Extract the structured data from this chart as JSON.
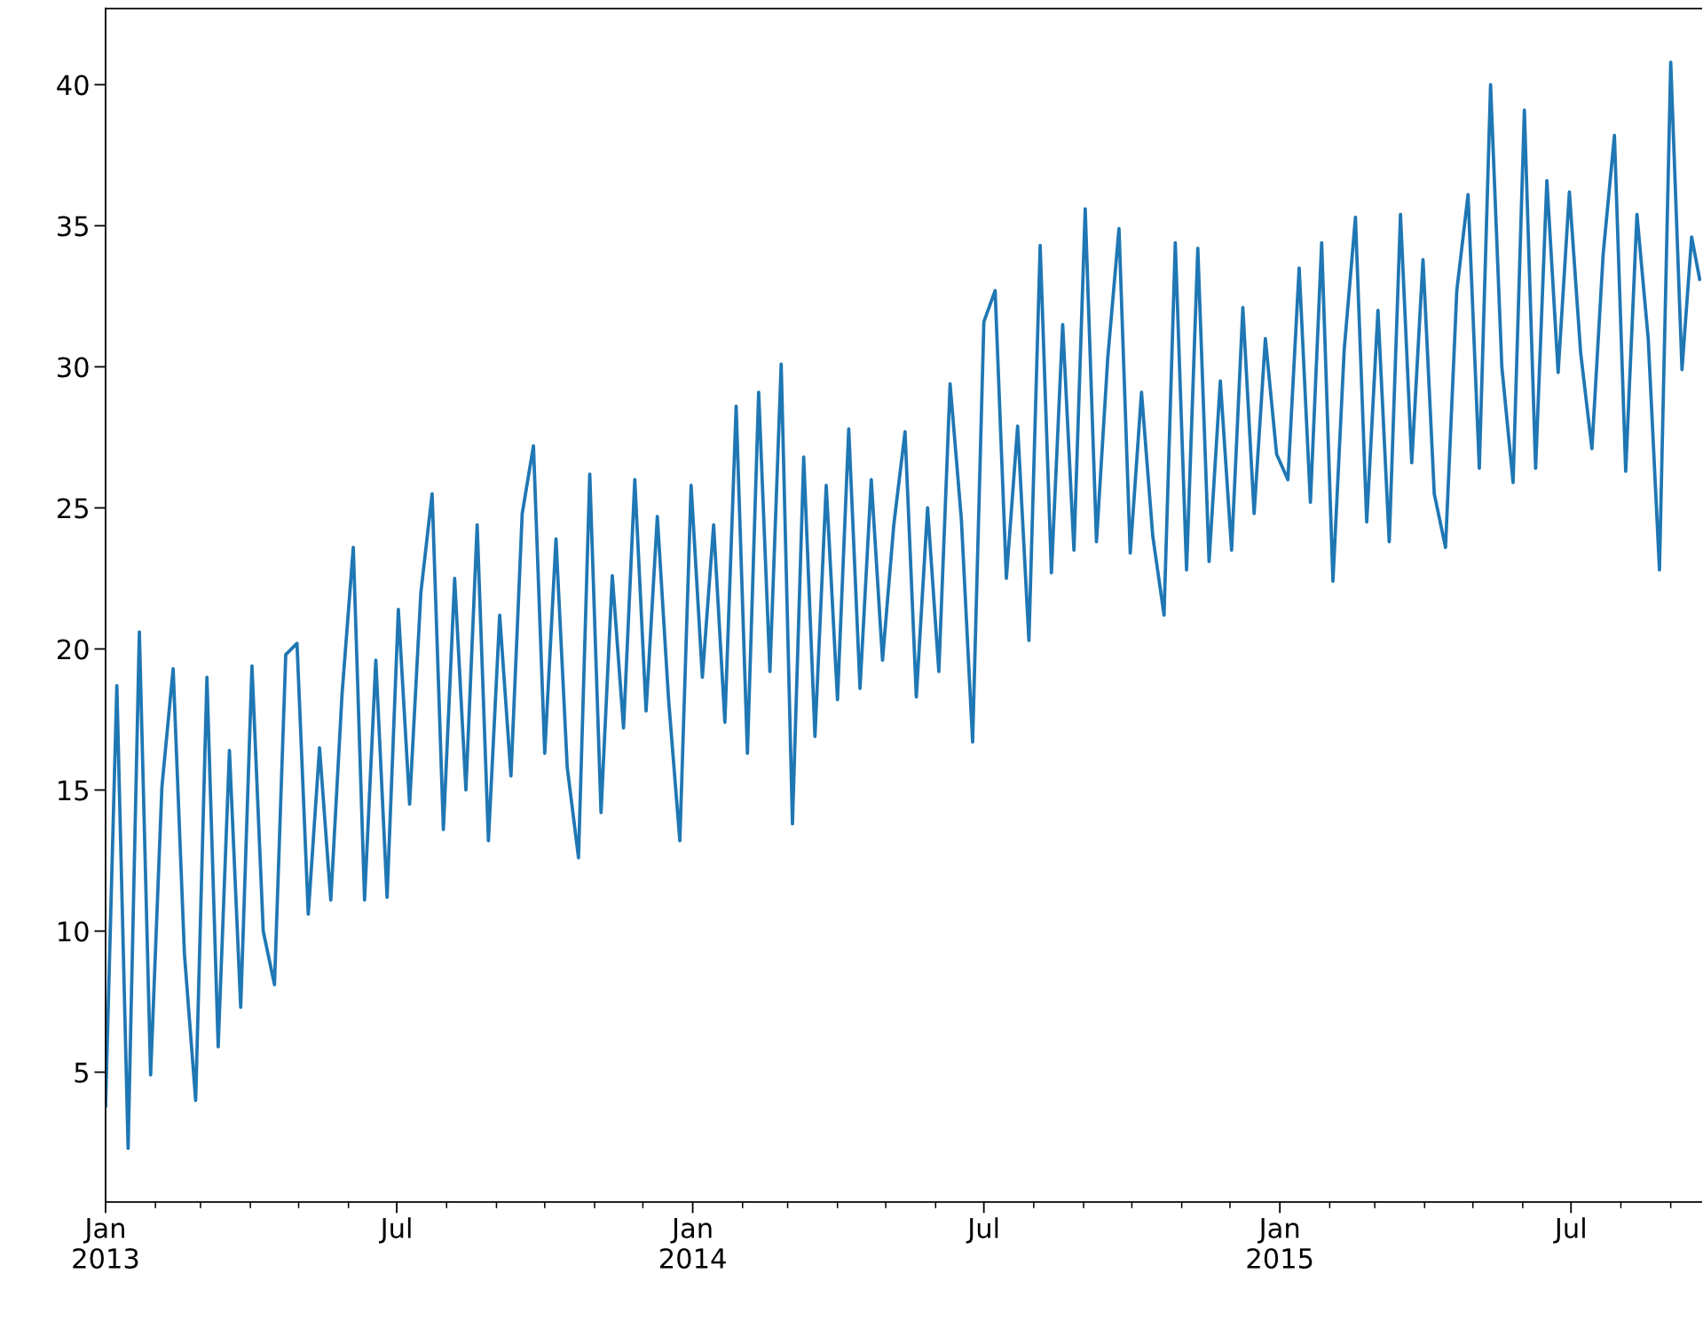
{
  "chart_data": {
    "type": "line",
    "x": [
      "2013-01-01",
      "2013-01-08",
      "2013-01-15",
      "2013-01-22",
      "2013-01-29",
      "2013-02-05",
      "2013-02-12",
      "2013-02-19",
      "2013-02-26",
      "2013-03-05",
      "2013-03-12",
      "2013-03-19",
      "2013-03-26",
      "2013-04-02",
      "2013-04-09",
      "2013-04-16",
      "2013-04-23",
      "2013-04-30",
      "2013-05-07",
      "2013-05-14",
      "2013-05-21",
      "2013-05-28",
      "2013-06-04",
      "2013-06-11",
      "2013-06-18",
      "2013-06-25",
      "2013-07-02",
      "2013-07-09",
      "2013-07-16",
      "2013-07-23",
      "2013-07-30",
      "2013-08-06",
      "2013-08-13",
      "2013-08-20",
      "2013-08-27",
      "2013-09-03",
      "2013-09-10",
      "2013-09-17",
      "2013-09-24",
      "2013-10-01",
      "2013-10-08",
      "2013-10-15",
      "2013-10-22",
      "2013-10-29",
      "2013-11-05",
      "2013-11-12",
      "2013-11-19",
      "2013-11-26",
      "2013-12-03",
      "2013-12-10",
      "2013-12-17",
      "2013-12-24",
      "2013-12-31",
      "2014-01-07",
      "2014-01-14",
      "2014-01-21",
      "2014-01-28",
      "2014-02-04",
      "2014-02-11",
      "2014-02-18",
      "2014-02-25",
      "2014-03-04",
      "2014-03-11",
      "2014-03-18",
      "2014-03-25",
      "2014-04-01",
      "2014-04-08",
      "2014-04-15",
      "2014-04-22",
      "2014-04-29",
      "2014-05-06",
      "2014-05-13",
      "2014-05-20",
      "2014-05-27",
      "2014-06-03",
      "2014-06-10",
      "2014-06-17",
      "2014-06-24",
      "2014-07-01",
      "2014-07-08",
      "2014-07-15",
      "2014-07-22",
      "2014-07-29",
      "2014-08-05",
      "2014-08-12",
      "2014-08-19",
      "2014-08-26",
      "2014-09-02",
      "2014-09-09",
      "2014-09-16",
      "2014-09-23",
      "2014-09-30",
      "2014-10-07",
      "2014-10-14",
      "2014-10-21",
      "2014-10-28",
      "2014-11-04",
      "2014-11-11",
      "2014-11-18",
      "2014-11-25",
      "2014-12-02",
      "2014-12-09",
      "2014-12-16",
      "2014-12-23",
      "2014-12-30",
      "2015-01-06",
      "2015-01-13",
      "2015-01-20",
      "2015-01-27",
      "2015-02-03",
      "2015-02-10",
      "2015-02-17",
      "2015-02-24",
      "2015-03-03",
      "2015-03-10",
      "2015-03-17",
      "2015-03-24",
      "2015-03-31",
      "2015-04-07",
      "2015-04-14",
      "2015-04-21",
      "2015-04-28",
      "2015-05-05",
      "2015-05-12",
      "2015-05-19",
      "2015-05-26",
      "2015-06-02",
      "2015-06-09",
      "2015-06-16",
      "2015-06-23",
      "2015-06-30",
      "2015-07-07",
      "2015-07-14",
      "2015-07-21",
      "2015-07-28",
      "2015-08-04",
      "2015-08-11",
      "2015-08-18",
      "2015-08-25",
      "2015-09-01",
      "2015-09-08",
      "2015-09-14",
      "2015-09-19"
    ],
    "series": [
      {
        "color": "#1f77b4",
        "values": [
          3.8,
          18.7,
          2.3,
          20.6,
          4.9,
          15.1,
          19.3,
          9.2,
          4.0,
          19.0,
          5.9,
          16.4,
          7.3,
          19.4,
          10.0,
          8.1,
          19.8,
          20.2,
          10.6,
          16.5,
          11.1,
          18.4,
          23.6,
          11.1,
          19.6,
          11.2,
          21.4,
          14.5,
          22.0,
          25.5,
          13.6,
          22.5,
          15.0,
          24.4,
          13.2,
          21.2,
          15.5,
          24.8,
          27.2,
          16.3,
          23.9,
          15.8,
          12.6,
          26.2,
          14.2,
          22.6,
          17.2,
          26.0,
          17.8,
          24.7,
          18.2,
          13.2,
          25.8,
          19.0,
          24.4,
          17.4,
          28.6,
          16.3,
          29.1,
          19.2,
          30.1,
          13.8,
          26.8,
          16.9,
          25.8,
          18.2,
          27.8,
          18.6,
          26.0,
          19.6,
          24.4,
          27.7,
          18.3,
          25.0,
          19.2,
          29.4,
          24.6,
          16.7,
          31.6,
          32.7,
          22.5,
          27.9,
          20.3,
          34.3,
          22.7,
          31.5,
          23.5,
          35.6,
          23.8,
          30.3,
          34.9,
          23.4,
          29.1,
          24.0,
          21.2,
          34.4,
          22.8,
          34.2,
          23.1,
          29.5,
          23.5,
          32.1,
          24.8,
          31.0,
          26.9,
          26.0,
          33.5,
          25.2,
          34.4,
          22.4,
          30.6,
          35.3,
          24.5,
          32.0,
          23.8,
          35.4,
          26.6,
          33.8,
          25.5,
          23.6,
          32.7,
          36.1,
          26.4,
          40.0,
          30.0,
          25.9,
          39.1,
          26.4,
          36.6,
          29.8,
          36.2,
          30.5,
          27.1,
          34.0,
          38.2,
          26.3,
          35.4,
          31.0,
          22.8,
          40.8,
          29.9,
          34.6,
          33.1
        ]
      }
    ],
    "xlim": [
      "2013-01-01",
      "2015-09-20"
    ],
    "xticks": [
      {
        "value": "2013-01",
        "label": "Jan\n2013"
      },
      {
        "value": "2013-07",
        "label": "Jul"
      },
      {
        "value": "2014-01",
        "label": "Jan\n2014"
      },
      {
        "value": "2014-07",
        "label": "Jul"
      },
      {
        "value": "2015-01",
        "label": "Jan\n2015"
      },
      {
        "value": "2015-07",
        "label": "Jul"
      }
    ],
    "ylim": [
      0.4,
      42.7
    ],
    "yticks": [
      5,
      10,
      15,
      20,
      25,
      30,
      35,
      40
    ],
    "line_style": "solid",
    "marker": "none"
  }
}
